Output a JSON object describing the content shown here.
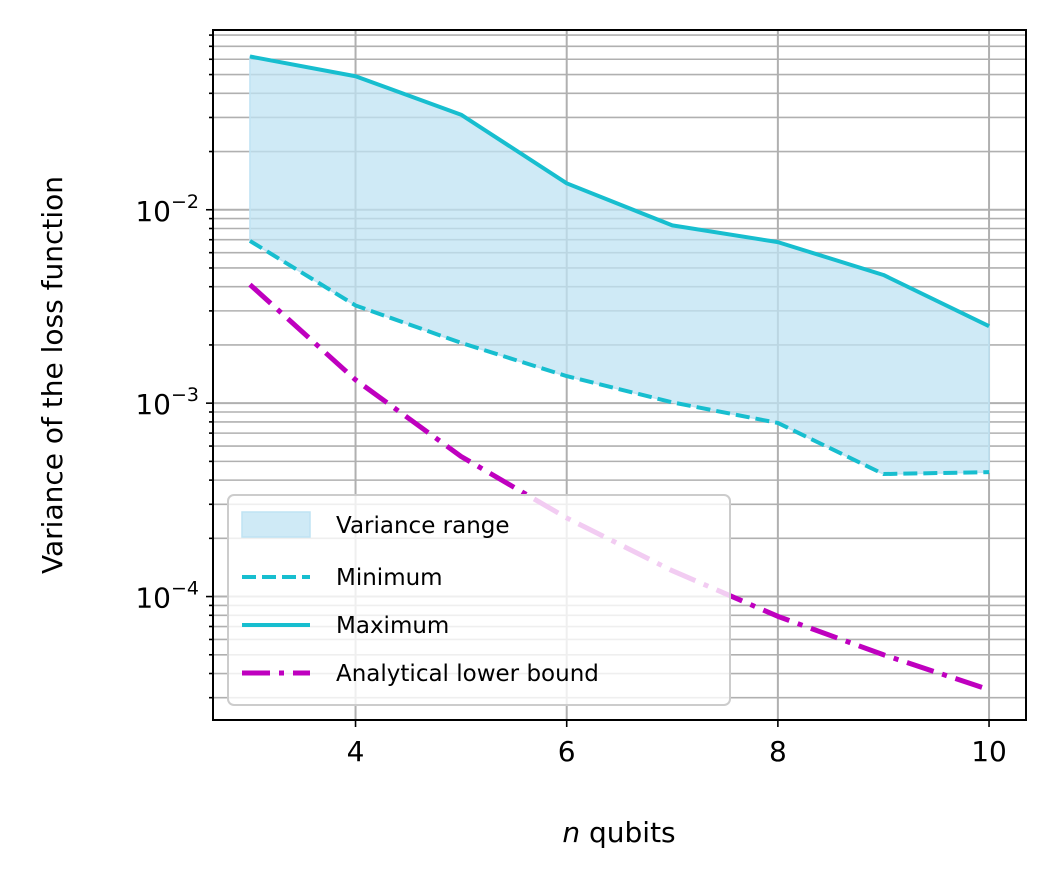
{
  "chart_data": {
    "type": "line",
    "xlabel_var": "n",
    "xlabel_rest": " qubits",
    "ylabel": "Variance of the loss function",
    "xlim": [
      2.65,
      10.35
    ],
    "ylim": [
      2.3e-05,
      0.085
    ],
    "yscale": "log",
    "grid": true,
    "legend_position": "lower-left",
    "x_ticks": [
      {
        "value": 4,
        "label": "4"
      },
      {
        "value": 6,
        "label": "6"
      },
      {
        "value": 8,
        "label": "8"
      },
      {
        "value": 10,
        "label": "10"
      }
    ],
    "y_ticks": [
      {
        "value": 0.01,
        "base": "10",
        "exp": "−2"
      },
      {
        "value": 0.001,
        "base": "10",
        "exp": "−3"
      },
      {
        "value": 0.0001,
        "base": "10",
        "exp": "−4"
      }
    ],
    "x": [
      3,
      4,
      5,
      6,
      7,
      8,
      9,
      10
    ],
    "series": [
      {
        "name": "Variance range",
        "kind": "fill",
        "color": "#bfe3f3"
      },
      {
        "name": "Minimum",
        "kind": "dashed",
        "color": "#17becf",
        "values": [
          0.0069,
          0.0032,
          0.00205,
          0.00138,
          0.00101,
          0.00079,
          0.00043,
          0.00044
        ]
      },
      {
        "name": "Maximum",
        "kind": "solid",
        "color": "#17becf",
        "values": [
          0.062,
          0.049,
          0.031,
          0.0137,
          0.0083,
          0.0068,
          0.0046,
          0.0025
        ]
      },
      {
        "name": "Analytical lower bound",
        "kind": "dashdot",
        "color": "#bf00bf",
        "values": [
          0.0041,
          0.00132,
          0.00053,
          0.000255,
          0.000136,
          7.9e-05,
          5e-05,
          3.3e-05
        ]
      }
    ]
  }
}
